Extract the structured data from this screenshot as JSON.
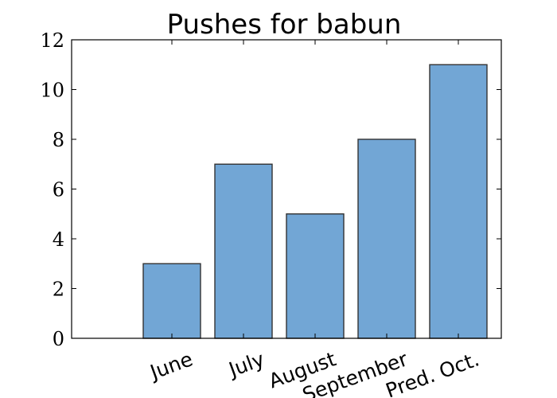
{
  "chart_data": {
    "type": "bar",
    "title": "Pushes for babun",
    "xlabel": "",
    "ylabel": "",
    "categories": [
      "June",
      "July",
      "August",
      "September",
      "Pred. Oct."
    ],
    "values": [
      3,
      7,
      5,
      8,
      11
    ],
    "ylim": [
      0,
      12
    ],
    "yticks": [
      "0",
      "2",
      "4",
      "6",
      "8",
      "10",
      "12"
    ],
    "bar_color": "#72a6d5",
    "edge_color": "#333333",
    "grid": false,
    "legend": "none",
    "xtick_rotation_deg": 20
  }
}
